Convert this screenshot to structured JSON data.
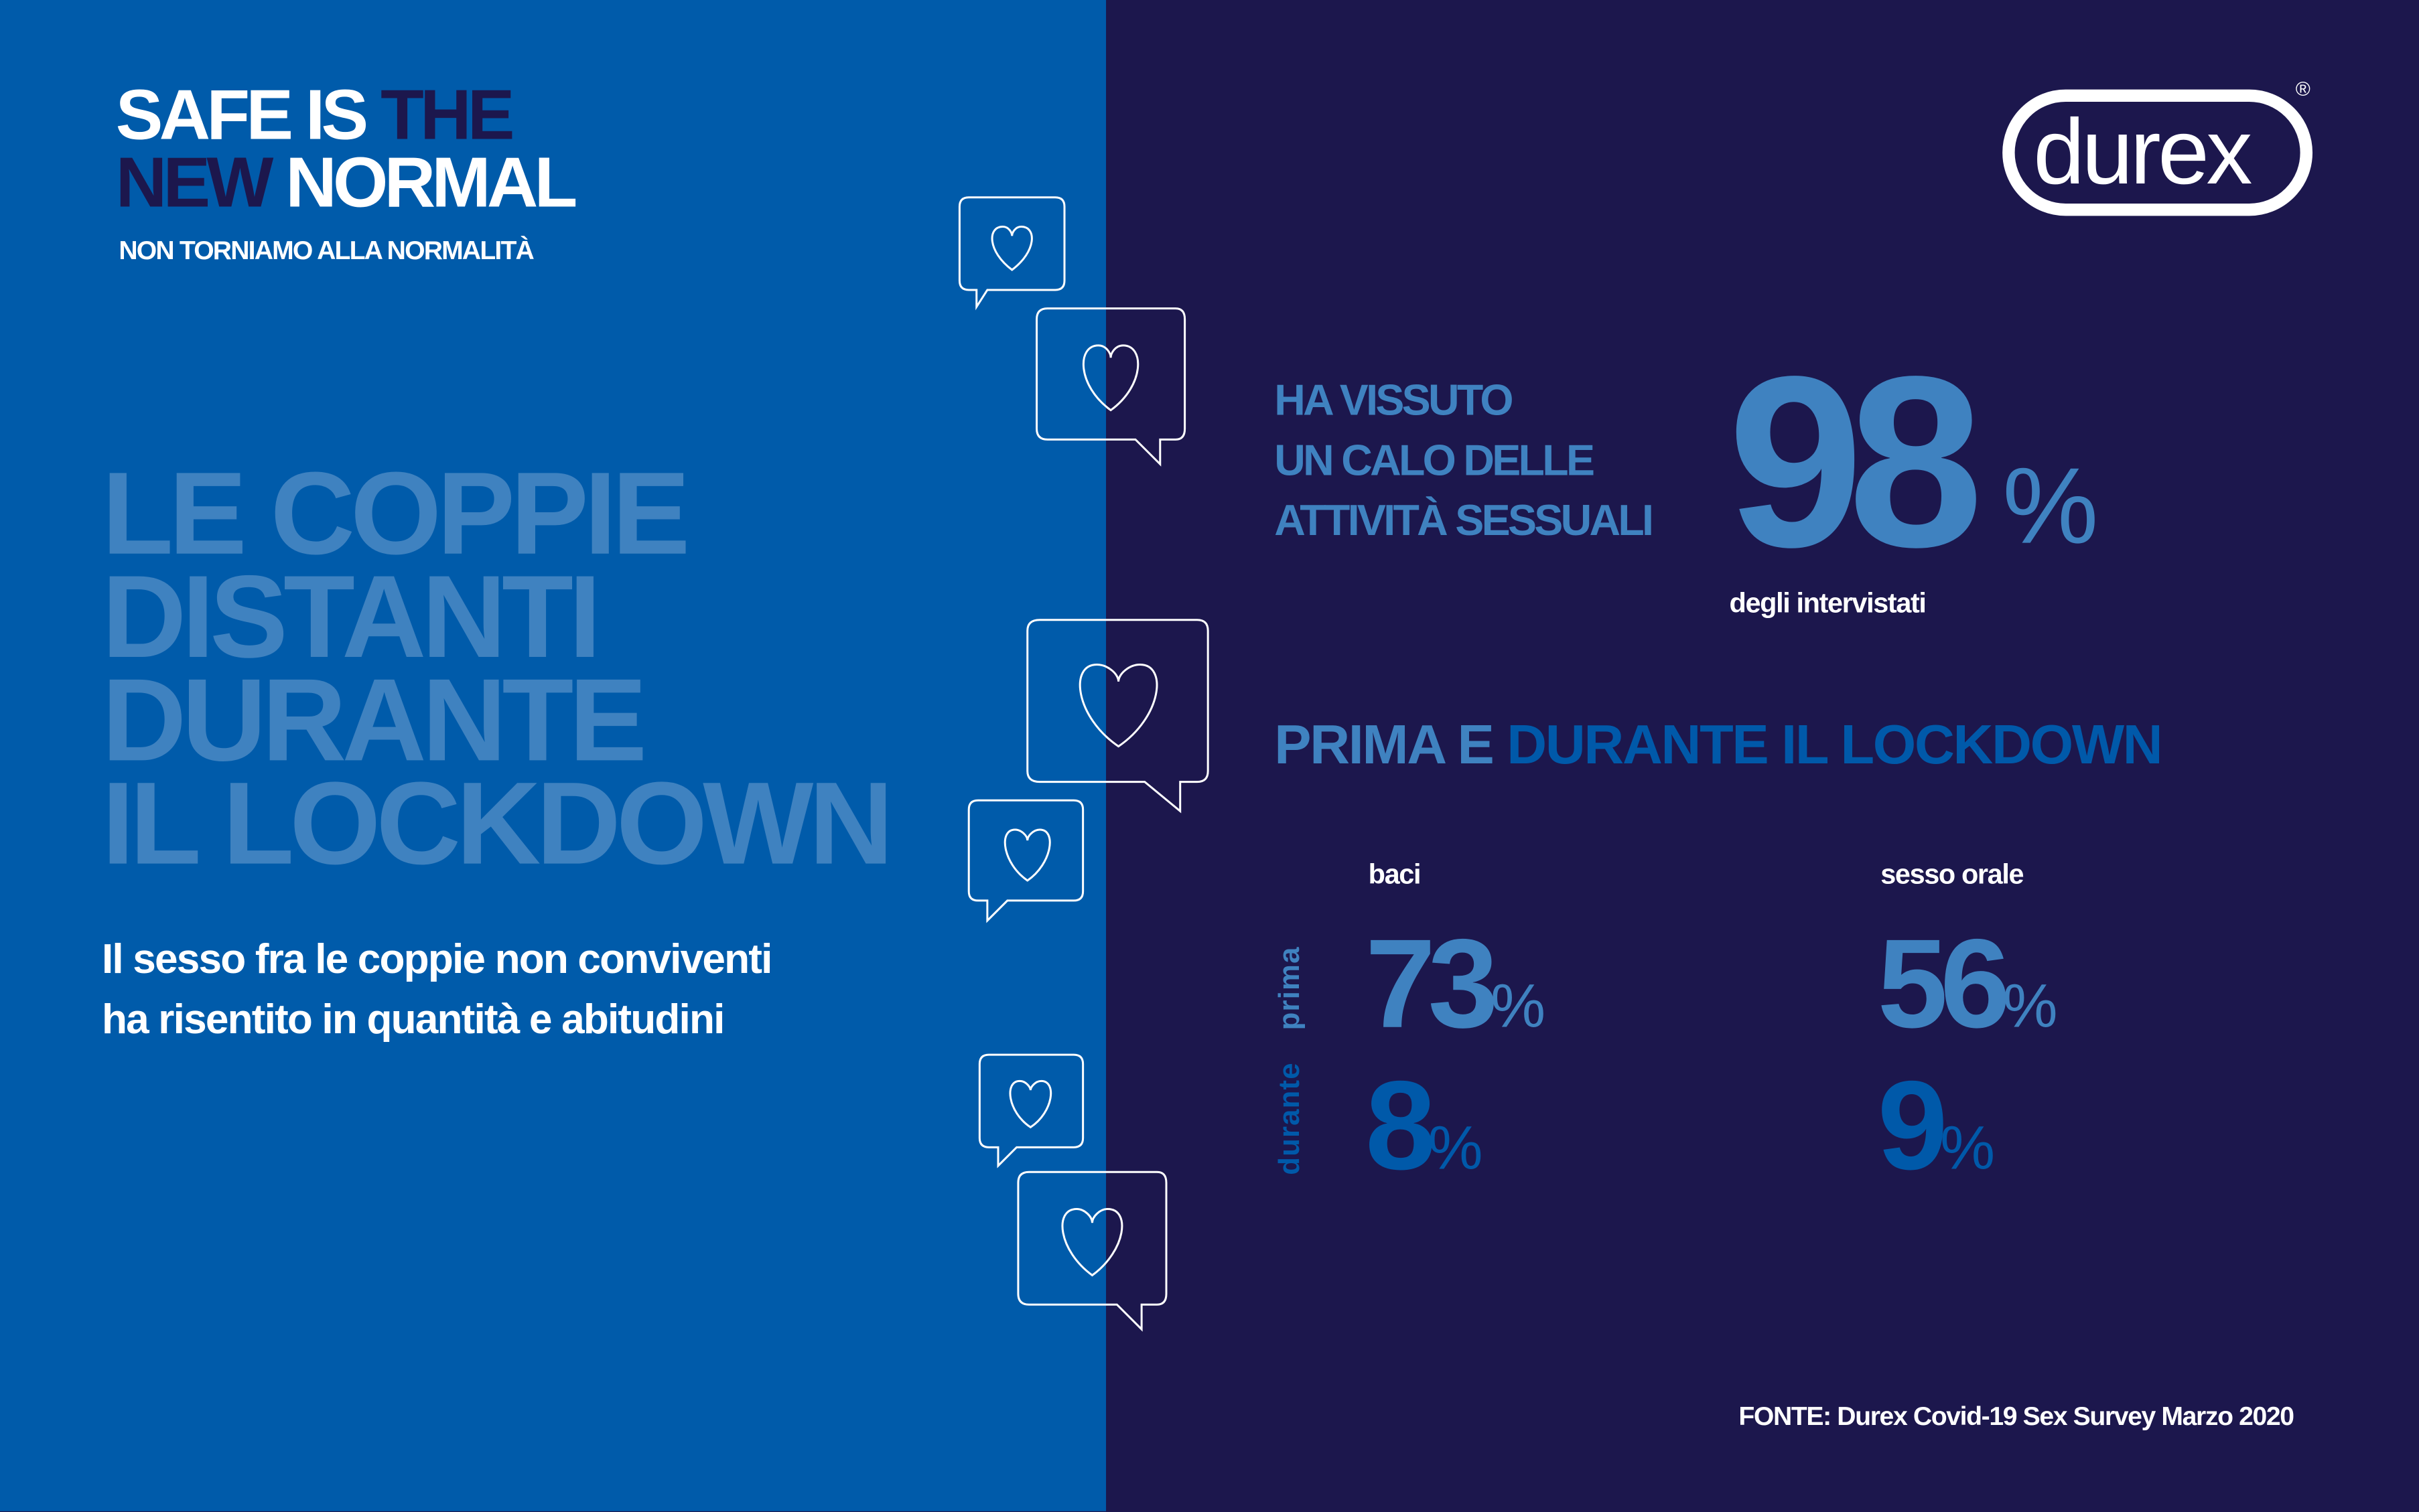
{
  "headline": {
    "line1_white": "SAFE IS",
    "line1_dark": "THE",
    "line2_dark": "NEW",
    "line2_white": "NORMAL"
  },
  "subtitle": "NON TORNIAMO ALLA NORMALITÀ",
  "main_title": [
    "LE COPPIE",
    "DISTANTI",
    "DURANTE",
    "IL LOCKDOWN"
  ],
  "body_text": [
    "Il sesso fra le coppie non conviventi",
    "ha risentito in quantità e abitudini"
  ],
  "brand": {
    "logo_text": "durex",
    "registered": "®"
  },
  "stat_main": {
    "label": [
      "HA VISSUTO",
      "UN CALO DELLE",
      "ATTIVITÀ SESSUALI"
    ],
    "value": "98",
    "unit": "%",
    "caption": "degli intervistati"
  },
  "comparison": {
    "title_light": "PRIMA E",
    "title_dark": "DURANTE IL LOCKDOWN",
    "rows": [
      "prima",
      "durante"
    ],
    "columns": [
      {
        "label": "baci",
        "prima": "73",
        "durante": "8"
      },
      {
        "label": "sesso orale",
        "prima": "56",
        "durante": "9"
      }
    ],
    "unit": "%"
  },
  "source": "FONTE: Durex Covid-19 Sex Survey Marzo 2020",
  "colors": {
    "left_bg": "#005BAA",
    "right_bg": "#1C174D",
    "light_blue": "#3F82C0",
    "dark_blue": "#0059A9"
  }
}
